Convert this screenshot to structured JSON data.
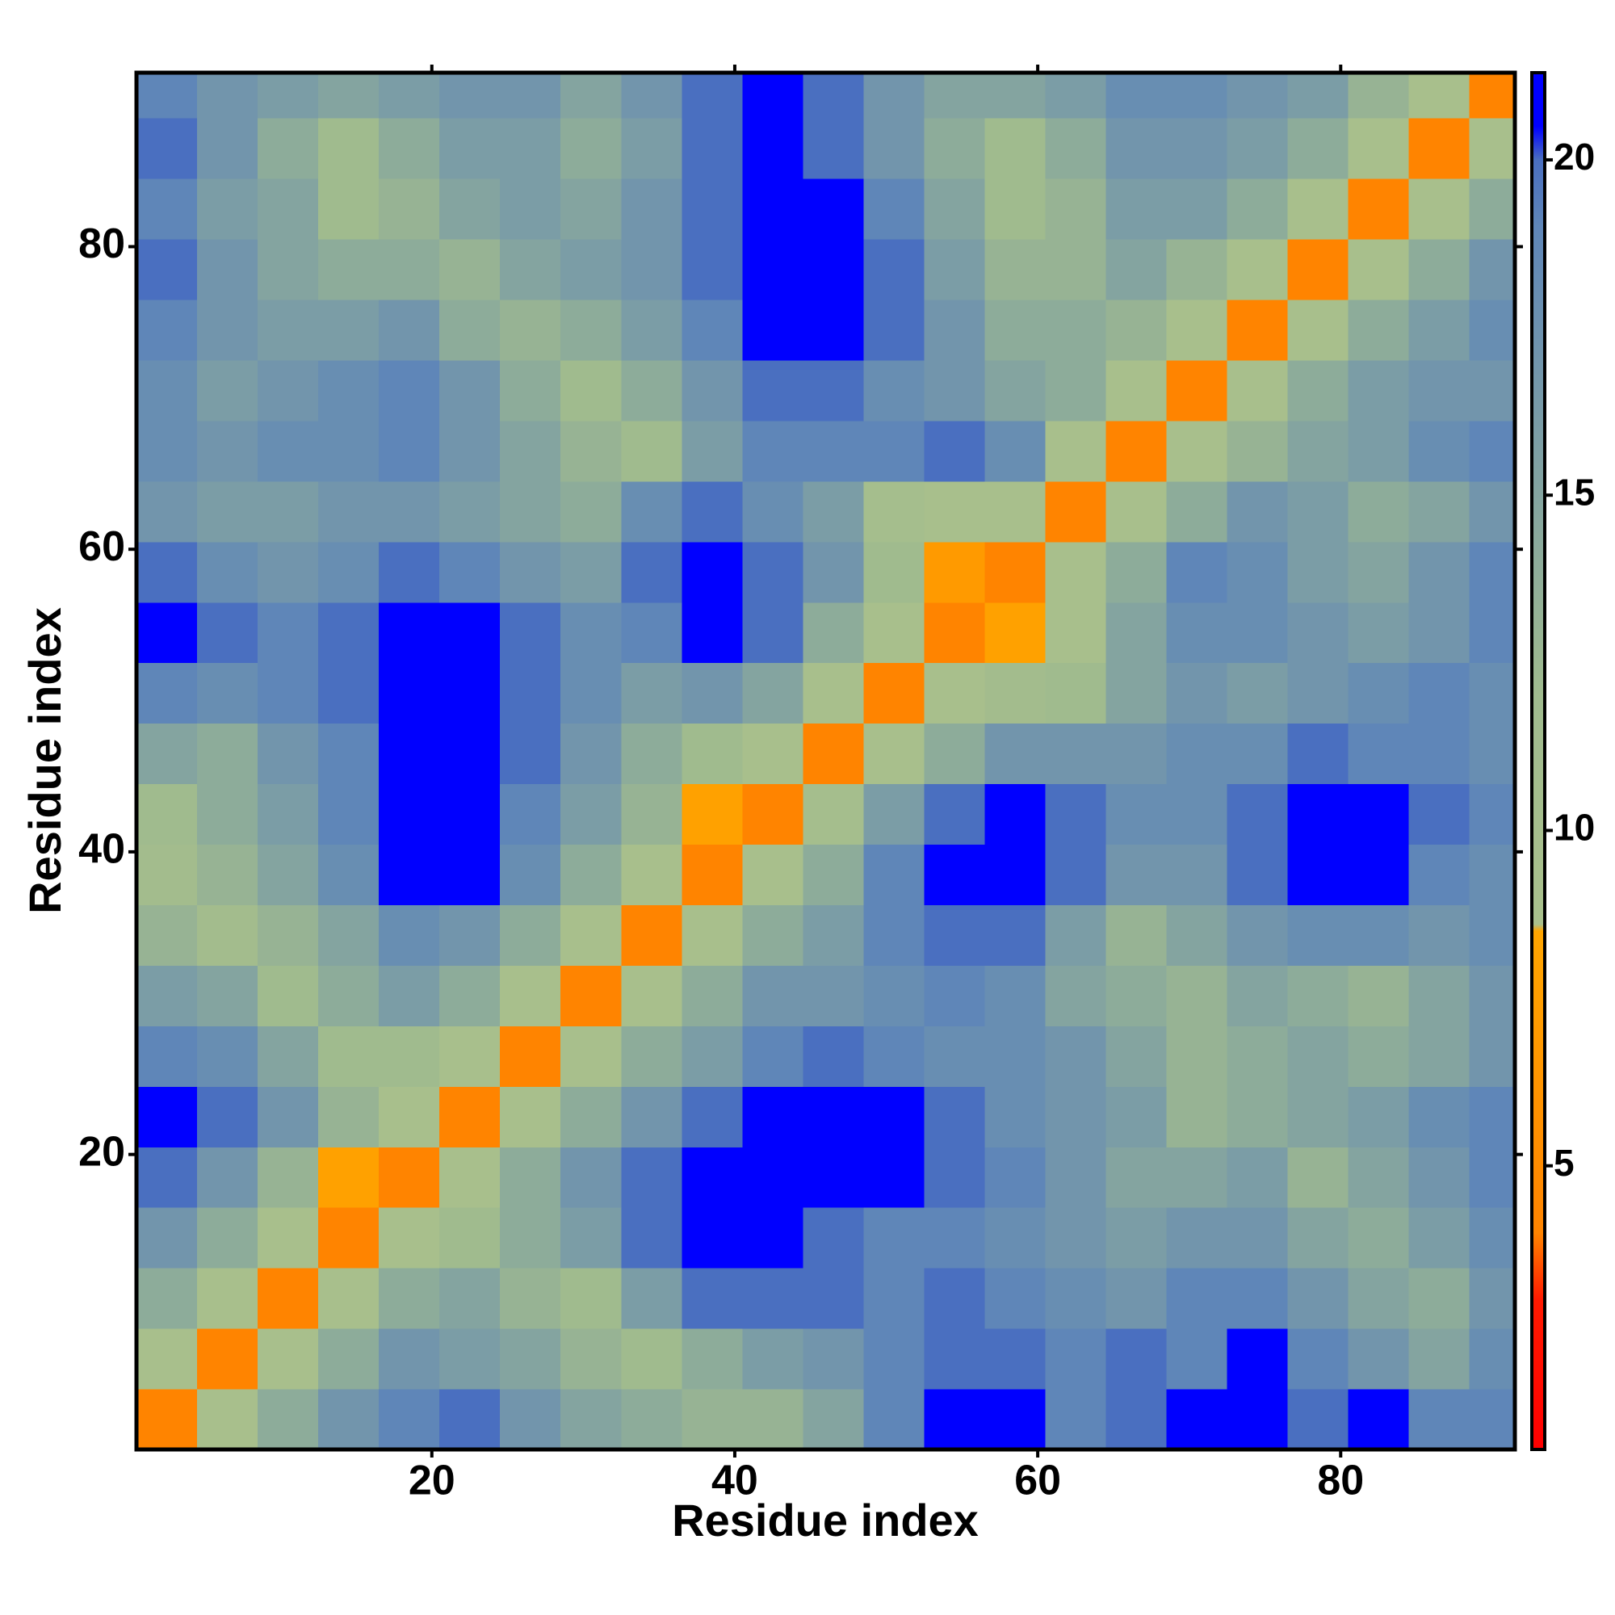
{
  "chart_data": {
    "type": "heatmap",
    "xlabel": "Residue index",
    "ylabel": "Residue index",
    "xlim": [
      0.5,
      91.5
    ],
    "ylim": [
      0.5,
      91.5
    ],
    "xticks": [
      20,
      40,
      60,
      80
    ],
    "yticks": [
      20,
      40,
      60,
      80
    ],
    "xbins": [
      0.5,
      4.5,
      8.5,
      12.5,
      16.5,
      20.5,
      24.5,
      28.5,
      32.5,
      36.5,
      40.5,
      44.5,
      48.5,
      52.5,
      56.5,
      60.5,
      64.5,
      68.5,
      72.5,
      76.5,
      80.5,
      84.5,
      88.5,
      91.5
    ],
    "ybins": [
      0.5,
      4.5,
      8.5,
      12.5,
      16.5,
      20.5,
      24.5,
      28.5,
      32.5,
      36.5,
      40.5,
      44.5,
      48.5,
      52.5,
      56.5,
      60.5,
      64.5,
      68.5,
      72.5,
      76.5,
      80.5,
      84.5,
      88.5,
      91.5
    ],
    "z": [
      [
        4,
        9,
        14,
        17,
        19,
        20,
        17,
        15,
        14,
        13,
        13,
        15,
        19,
        21,
        21,
        19,
        20,
        21,
        21,
        20,
        21,
        19,
        19
      ],
      [
        9,
        4,
        9,
        14,
        17,
        16,
        15,
        13,
        12,
        14,
        16,
        17,
        19,
        20,
        20,
        19,
        20,
        19,
        21,
        19,
        17,
        15,
        18
      ],
      [
        14,
        9,
        4,
        9,
        14,
        15,
        13,
        12,
        16,
        20,
        20,
        20,
        19,
        20,
        19,
        18,
        17,
        19,
        19,
        17,
        15,
        14,
        17
      ],
      [
        17,
        14,
        9,
        4,
        9,
        12,
        14,
        16,
        20,
        21,
        21,
        20,
        19,
        19,
        18,
        17,
        16,
        17,
        17,
        15,
        14,
        16,
        18
      ],
      [
        20,
        17,
        13,
        8,
        4,
        9,
        14,
        17,
        20,
        21,
        21,
        21,
        21,
        20,
        19,
        17,
        15,
        15,
        16,
        13,
        15,
        17,
        19
      ],
      [
        21,
        20,
        17,
        13,
        9,
        4,
        9,
        14,
        17,
        20,
        21,
        21,
        21,
        20,
        18,
        17,
        16,
        13,
        14,
        15,
        16,
        18,
        19
      ],
      [
        19,
        18,
        15,
        12,
        12,
        9,
        4,
        9,
        14,
        16,
        19,
        20,
        19,
        18,
        18,
        17,
        15,
        13,
        14,
        15,
        14,
        15,
        17
      ],
      [
        16,
        15,
        12,
        14,
        16,
        14,
        9,
        4,
        9,
        14,
        17,
        17,
        18,
        19,
        18,
        15,
        14,
        13,
        15,
        14,
        13,
        15,
        17
      ],
      [
        13,
        11,
        13,
        15,
        18,
        17,
        14,
        9,
        4,
        9,
        14,
        16,
        19,
        20,
        20,
        16,
        13,
        15,
        17,
        18,
        18,
        17,
        18
      ],
      [
        11,
        13,
        15,
        18,
        21,
        21,
        18,
        14,
        9,
        4,
        9,
        14,
        19,
        21,
        21,
        20,
        17,
        17,
        20,
        21,
        21,
        19,
        18
      ],
      [
        12,
        14,
        16,
        19,
        21,
        21,
        19,
        16,
        13,
        8,
        4,
        10,
        16,
        20,
        21,
        20,
        18,
        18,
        20,
        21,
        21,
        20,
        19
      ],
      [
        15,
        14,
        17,
        19,
        21,
        21,
        20,
        17,
        14,
        12,
        9,
        4,
        9,
        14,
        17,
        17,
        17,
        18,
        18,
        20,
        19,
        19,
        18
      ],
      [
        19,
        18,
        19,
        20,
        21,
        21,
        20,
        18,
        16,
        17,
        15,
        9,
        4,
        9,
        11,
        12,
        15,
        17,
        16,
        17,
        18,
        19,
        18
      ],
      [
        21,
        20,
        19,
        20,
        21,
        21,
        20,
        18,
        19,
        21,
        20,
        14,
        9,
        4,
        8,
        9,
        15,
        18,
        18,
        17,
        16,
        17,
        19
      ],
      [
        20,
        18,
        17,
        18,
        20,
        19,
        17,
        16,
        20,
        21,
        20,
        17,
        12,
        7,
        4,
        9,
        14,
        19,
        18,
        16,
        15,
        17,
        19
      ],
      [
        17,
        16,
        16,
        17,
        17,
        16,
        15,
        14,
        18,
        20,
        18,
        16,
        10,
        9,
        9,
        4,
        9,
        14,
        17,
        16,
        14,
        15,
        17
      ],
      [
        18,
        17,
        18,
        18,
        19,
        17,
        15,
        13,
        12,
        16,
        19,
        19,
        19,
        20,
        18,
        9,
        4,
        9,
        13,
        15,
        16,
        18,
        19
      ],
      [
        18,
        16,
        17,
        18,
        19,
        17,
        14,
        12,
        14,
        17,
        20,
        20,
        18,
        17,
        15,
        14,
        9,
        4,
        9,
        14,
        16,
        17,
        17
      ],
      [
        19,
        17,
        16,
        16,
        17,
        14,
        13,
        14,
        16,
        19,
        21,
        21,
        20,
        17,
        14,
        14,
        13,
        9,
        4,
        9,
        14,
        16,
        18
      ],
      [
        20,
        17,
        15,
        14,
        14,
        13,
        15,
        16,
        17,
        20,
        21,
        21,
        20,
        16,
        13,
        13,
        15,
        13,
        9,
        4,
        9,
        14,
        17
      ],
      [
        19,
        16,
        15,
        12,
        13,
        15,
        16,
        15,
        17,
        20,
        21,
        21,
        19,
        15,
        12,
        13,
        16,
        16,
        14,
        9,
        4,
        9,
        14
      ],
      [
        20,
        17,
        14,
        12,
        14,
        16,
        16,
        14,
        16,
        20,
        21,
        20,
        17,
        14,
        12,
        14,
        17,
        17,
        16,
        14,
        9,
        4,
        9
      ],
      [
        19,
        17,
        16,
        15,
        16,
        17,
        17,
        15,
        17,
        20,
        21,
        20,
        17,
        15,
        15,
        16,
        18,
        18,
        17,
        16,
        13,
        9,
        4
      ]
    ],
    "colorbar": {
      "lim": [
        0.77,
        21.3
      ],
      "ticks": [
        5,
        10,
        15,
        20
      ]
    },
    "colormap": [
      {
        "value": 0.77,
        "color": "#ff0000"
      },
      {
        "value": 3,
        "color": "#ff1a00"
      },
      {
        "value": 4,
        "color": "#ff8400"
      },
      {
        "value": 8.5,
        "color": "#ffa500"
      },
      {
        "value": 8.6,
        "color": "#a9c08c"
      },
      {
        "value": 12,
        "color": "#a0bb8e"
      },
      {
        "value": 19,
        "color": "#5f86b8"
      },
      {
        "value": 20,
        "color": "#4a6fc0"
      },
      {
        "value": 20.5,
        "color": "#0000ff"
      },
      {
        "value": 21.3,
        "color": "#0000ff"
      }
    ]
  }
}
